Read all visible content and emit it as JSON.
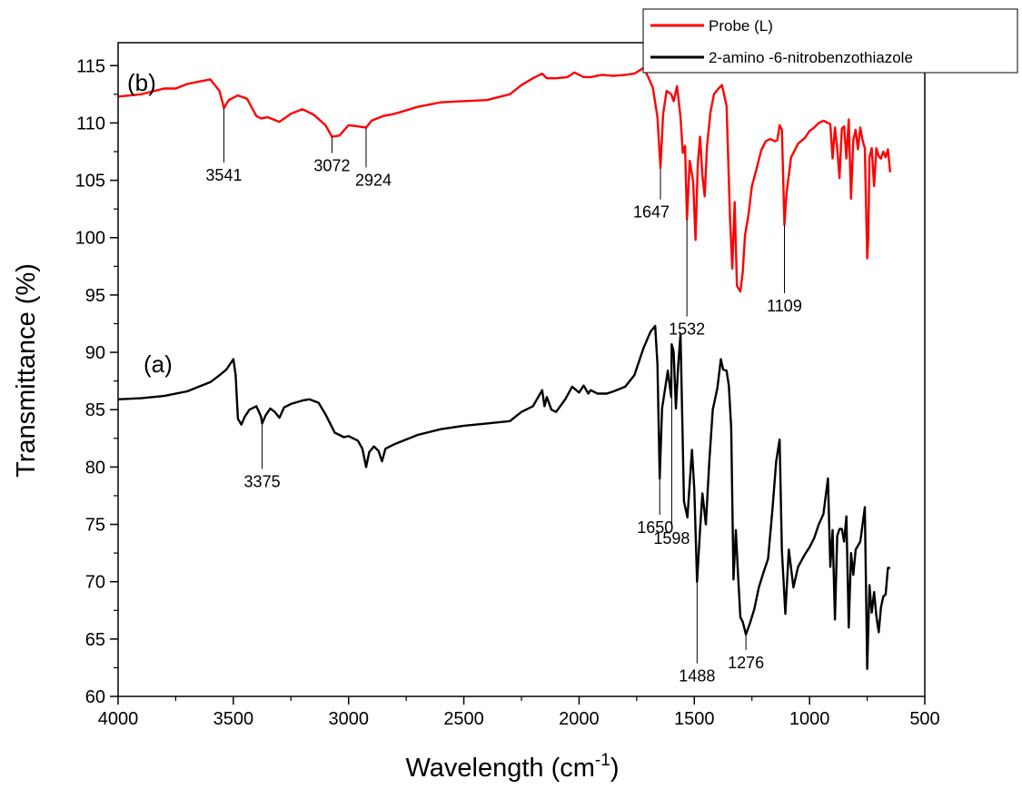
{
  "chart_data": {
    "type": "line",
    "xlabel": "Wavelength (cm",
    "xlabel_sup": "-1",
    "xlabel_tail": ")",
    "ylabel": "Transmittance (%)",
    "xlim": [
      4000,
      500
    ],
    "ylim": [
      60,
      117
    ],
    "x_ticks": [
      "4000",
      "3500",
      "3000",
      "2500",
      "2000",
      "1500",
      "1000",
      "500"
    ],
    "y_ticks": [
      "60",
      "65",
      "70",
      "75",
      "80",
      "85",
      "90",
      "95",
      "100",
      "105",
      "110",
      "115"
    ],
    "grid": false,
    "legend_position": "top-right",
    "series": [
      {
        "name": "Probe (L)",
        "panel_label": "(b)",
        "color": "#ff0000",
        "x": [
          4000,
          3900,
          3800,
          3750,
          3700,
          3650,
          3600,
          3560,
          3541,
          3520,
          3480,
          3440,
          3400,
          3380,
          3350,
          3300,
          3250,
          3200,
          3150,
          3100,
          3072,
          3040,
          3000,
          2960,
          2924,
          2900,
          2850,
          2800,
          2700,
          2600,
          2500,
          2400,
          2300,
          2250,
          2200,
          2160,
          2140,
          2100,
          2050,
          2020,
          2000,
          1980,
          1950,
          1900,
          1850,
          1800,
          1760,
          1720,
          1700,
          1680,
          1660,
          1647,
          1635,
          1620,
          1600,
          1590,
          1575,
          1560,
          1550,
          1540,
          1532,
          1520,
          1505,
          1495,
          1485,
          1475,
          1465,
          1455,
          1445,
          1430,
          1415,
          1395,
          1380,
          1360,
          1345,
          1335,
          1325,
          1315,
          1300,
          1290,
          1280,
          1265,
          1250,
          1230,
          1210,
          1190,
          1170,
          1150,
          1140,
          1130,
          1120,
          1109,
          1100,
          1080,
          1050,
          1020,
          1000,
          980,
          960,
          940,
          920,
          910,
          900,
          890,
          880,
          870,
          860,
          850,
          840,
          830,
          820,
          810,
          800,
          790,
          780,
          770,
          760,
          750,
          745,
          740,
          730,
          720,
          710,
          700,
          690,
          680,
          670,
          660,
          650
        ],
        "y": [
          112.3,
          112.5,
          113.0,
          113.0,
          113.4,
          113.6,
          113.8,
          112.8,
          111.3,
          112.0,
          112.4,
          112.1,
          110.6,
          110.4,
          110.5,
          110.1,
          110.8,
          111.2,
          110.7,
          109.8,
          108.8,
          108.9,
          109.8,
          109.7,
          109.6,
          110.2,
          110.6,
          110.8,
          111.4,
          111.8,
          111.9,
          112.0,
          112.5,
          113.3,
          113.9,
          114.3,
          113.9,
          113.9,
          114.0,
          114.4,
          114.2,
          114.0,
          114.0,
          114.2,
          114.1,
          114.2,
          114.3,
          114.8,
          114.0,
          113.1,
          110.5,
          106.1,
          110.8,
          112.8,
          112.5,
          111.9,
          113.2,
          110.5,
          107.4,
          108.0,
          101.6,
          106.7,
          104.9,
          99.8,
          106.4,
          108.8,
          105.4,
          103.6,
          107.9,
          110.9,
          112.5,
          113.0,
          113.3,
          111.5,
          101.7,
          97.3,
          103.1,
          95.8,
          95.3,
          97.0,
          100.2,
          102.0,
          104.5,
          106.0,
          107.6,
          108.4,
          108.6,
          108.4,
          108.5,
          109.8,
          109.4,
          101.1,
          103.9,
          107.0,
          108.2,
          108.7,
          109.3,
          109.6,
          110.0,
          110.2,
          110.0,
          109.9,
          106.9,
          109.6,
          107.8,
          105.2,
          109.5,
          109.7,
          106.9,
          110.3,
          103.4,
          108.5,
          109.4,
          107.7,
          109.6,
          108.5,
          107.8,
          98.2,
          100.0,
          107.0,
          107.8,
          104.5,
          107.8,
          107.1,
          106.9,
          107.5,
          107.0,
          107.7,
          105.7
        ],
        "peaks": [
          {
            "x": 3541,
            "label": "3541"
          },
          {
            "x": 3072,
            "label": "3072"
          },
          {
            "x": 2924,
            "label": "2924"
          },
          {
            "x": 1647,
            "label": "1647"
          },
          {
            "x": 1532,
            "label": "1532"
          },
          {
            "x": 1109,
            "label": "1109"
          }
        ]
      },
      {
        "name": "2-amino -6-nitrobenzothiazole",
        "panel_label": "(a)",
        "color": "#000000",
        "x": [
          4000,
          3900,
          3800,
          3700,
          3650,
          3600,
          3560,
          3530,
          3500,
          3490,
          3480,
          3465,
          3450,
          3430,
          3400,
          3380,
          3375,
          3360,
          3340,
          3320,
          3300,
          3280,
          3250,
          3200,
          3170,
          3130,
          3100,
          3060,
          3020,
          3000,
          2960,
          2940,
          2924,
          2910,
          2890,
          2870,
          2855,
          2840,
          2800,
          2700,
          2600,
          2500,
          2400,
          2300,
          2250,
          2200,
          2160,
          2150,
          2140,
          2120,
          2100,
          2060,
          2030,
          2000,
          1980,
          1960,
          1950,
          1920,
          1880,
          1850,
          1800,
          1760,
          1720,
          1690,
          1670,
          1660,
          1650,
          1640,
          1630,
          1615,
          1600,
          1598,
          1590,
          1580,
          1570,
          1560,
          1545,
          1530,
          1510,
          1500,
          1488,
          1475,
          1465,
          1450,
          1435,
          1420,
          1400,
          1385,
          1375,
          1360,
          1350,
          1340,
          1330,
          1320,
          1310,
          1300,
          1290,
          1276,
          1260,
          1240,
          1220,
          1200,
          1180,
          1160,
          1145,
          1130,
          1120,
          1105,
          1090,
          1070,
          1050,
          1020,
          1000,
          980,
          960,
          940,
          920,
          910,
          900,
          890,
          880,
          870,
          860,
          850,
          840,
          830,
          820,
          810,
          800,
          780,
          760,
          750,
          740,
          730,
          720,
          710,
          700,
          690,
          680,
          670,
          660,
          650
        ],
        "y": [
          85.9,
          86.0,
          86.2,
          86.6,
          87.0,
          87.4,
          88.0,
          88.5,
          89.4,
          88.0,
          84.2,
          83.7,
          84.4,
          85.0,
          85.3,
          84.4,
          83.8,
          84.5,
          85.1,
          84.8,
          84.3,
          85.2,
          85.5,
          85.8,
          85.9,
          85.6,
          84.6,
          83.0,
          82.6,
          82.7,
          82.3,
          81.6,
          80.0,
          81.3,
          81.8,
          81.4,
          80.5,
          81.6,
          82.0,
          82.8,
          83.3,
          83.6,
          83.8,
          84.0,
          84.8,
          85.3,
          86.7,
          85.3,
          86.1,
          85.0,
          84.8,
          85.9,
          87.0,
          86.5,
          87.1,
          86.4,
          86.7,
          86.4,
          86.4,
          86.6,
          87.0,
          88.0,
          90.4,
          91.8,
          92.3,
          89.0,
          79.0,
          85.1,
          86.4,
          88.4,
          86.1,
          90.7,
          90.1,
          85.1,
          88.8,
          91.6,
          77.0,
          75.6,
          81.5,
          78.0,
          70.0,
          74.5,
          77.7,
          75.0,
          80.5,
          85.0,
          86.9,
          89.4,
          88.5,
          88.4,
          87.1,
          83.4,
          70.2,
          74.5,
          70.5,
          66.9,
          66.5,
          65.4,
          66.3,
          67.6,
          69.5,
          70.8,
          72.0,
          76.5,
          80.5,
          82.4,
          72.7,
          67.2,
          72.8,
          69.5,
          71.3,
          72.4,
          73.0,
          73.8,
          75.0,
          75.9,
          79.0,
          71.3,
          74.5,
          66.7,
          74.0,
          74.6,
          74.6,
          73.5,
          75.7,
          66.0,
          72.5,
          70.6,
          72.8,
          73.5,
          76.5,
          62.4,
          69.7,
          67.3,
          69.1,
          67.0,
          65.6,
          67.8,
          68.7,
          68.9,
          71.2,
          71.2
        ],
        "peaks": [
          {
            "x": 3375,
            "label": "3375"
          },
          {
            "x": 1650,
            "label": "1650"
          },
          {
            "x": 1598,
            "label": "1598"
          },
          {
            "x": 1488,
            "label": "1488"
          },
          {
            "x": 1276,
            "label": "1276"
          }
        ]
      }
    ]
  }
}
